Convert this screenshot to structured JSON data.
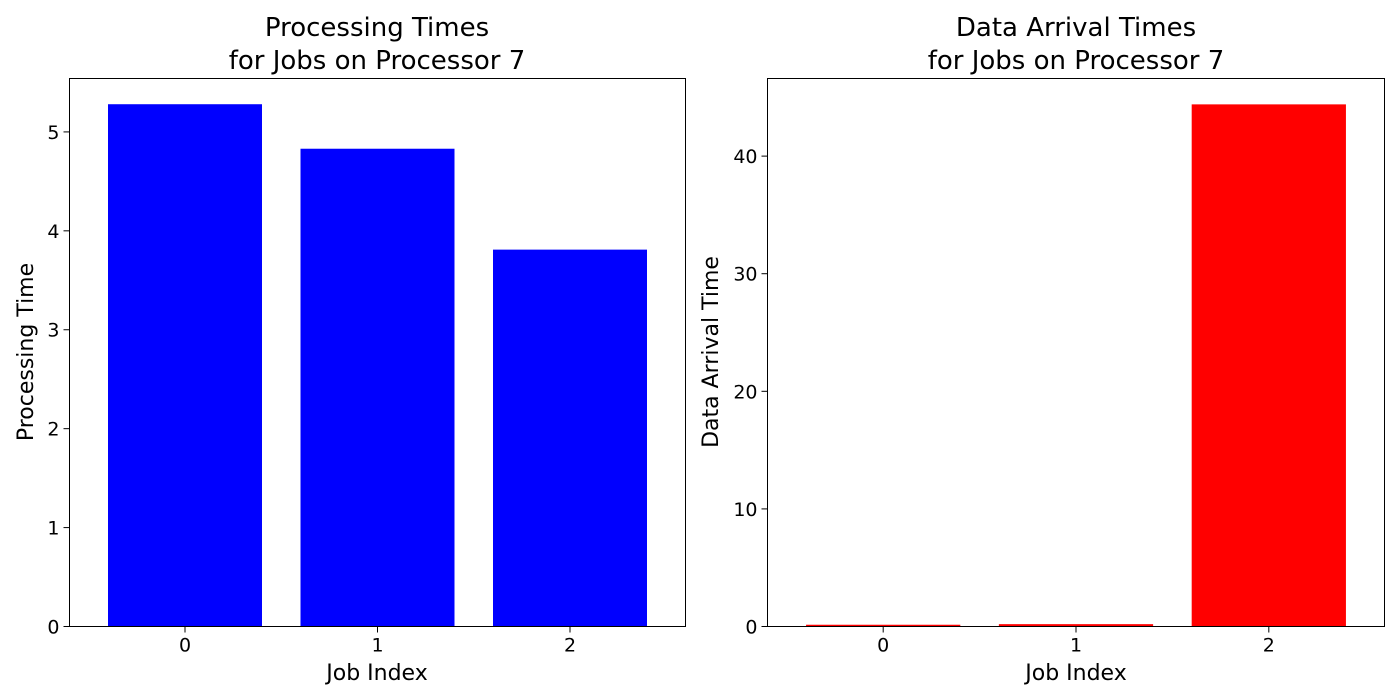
{
  "chart_data": [
    {
      "type": "bar",
      "title": [
        "Processing Times",
        "for Jobs on Processor 7"
      ],
      "xlabel": "Job Index",
      "ylabel": "Processing Time",
      "categories": [
        "0",
        "1",
        "2"
      ],
      "values": [
        5.28,
        4.83,
        3.81
      ],
      "ylim": [
        0,
        5.54
      ],
      "yticks": [
        0,
        1,
        2,
        3,
        4,
        5
      ],
      "color": "#0000ff",
      "grid": false
    },
    {
      "type": "bar",
      "title": [
        "Data Arrival Times",
        "for Jobs on Processor 7"
      ],
      "xlabel": "Job Index",
      "ylabel": "Data Arrival Time",
      "categories": [
        "0",
        "1",
        "2"
      ],
      "values": [
        0.15,
        0.2,
        44.4
      ],
      "ylim": [
        0,
        46.6
      ],
      "yticks": [
        0,
        10,
        20,
        30,
        40
      ],
      "color": "#ff0000",
      "grid": false
    }
  ]
}
